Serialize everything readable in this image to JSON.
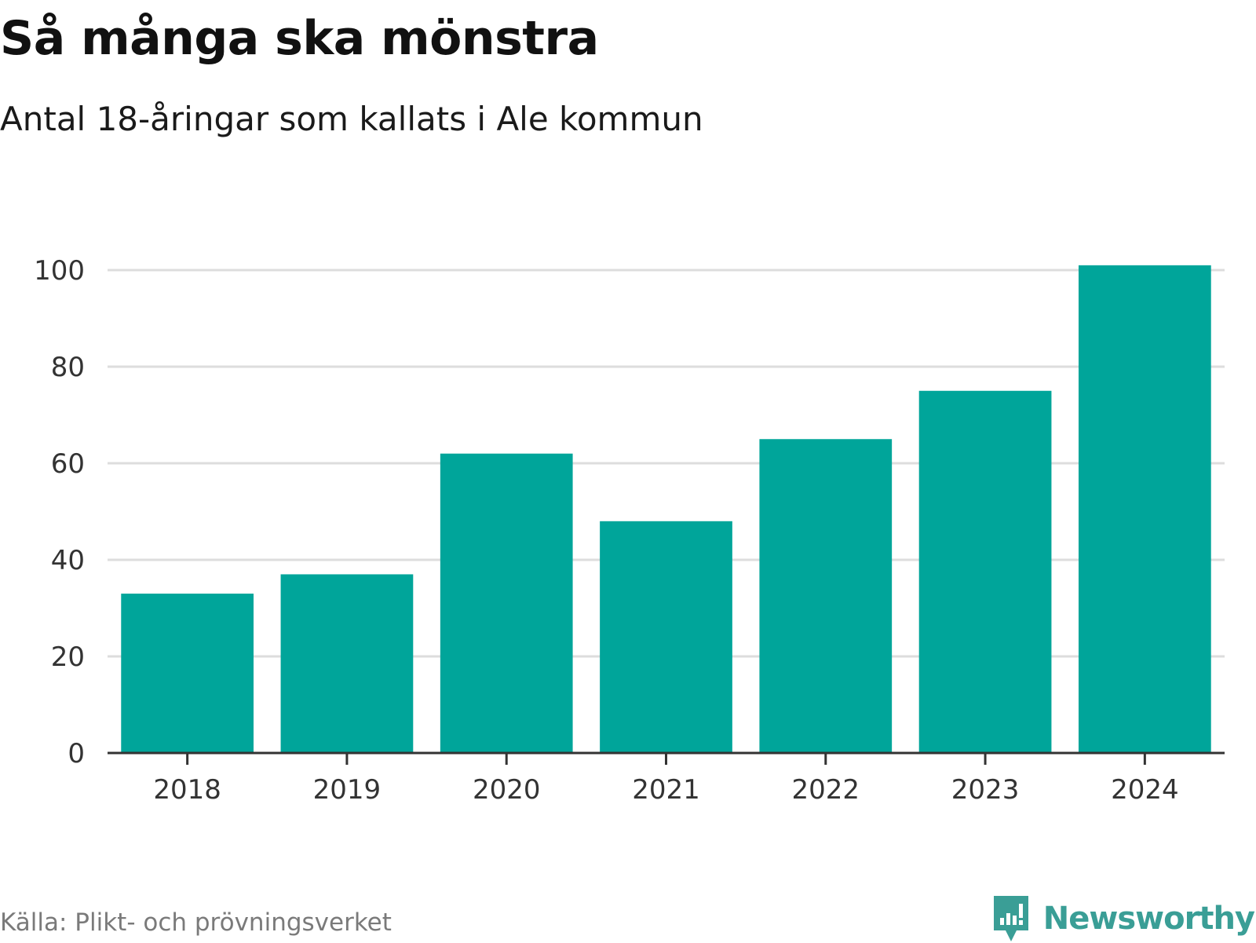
{
  "header": {
    "title": "Så många ska mönstra",
    "subtitle": "Antal 18-åringar som kallats i Ale kommun"
  },
  "footer": {
    "source": "Källa: Plikt- och prövningsverket",
    "brand": "Newsworthy",
    "brand_icon": "chart-bubble-icon",
    "brand_color": "#3a9e96"
  },
  "colors": {
    "bar": "#00a59a",
    "grid": "#dddddd",
    "axis": "#333333"
  },
  "chart_data": {
    "type": "bar",
    "title": "Så många ska mönstra",
    "subtitle": "Antal 18-åringar som kallats i Ale kommun",
    "categories": [
      "2018",
      "2019",
      "2020",
      "2021",
      "2022",
      "2023",
      "2024"
    ],
    "values": [
      33,
      37,
      62,
      48,
      65,
      75,
      101
    ],
    "xlabel": "",
    "ylabel": "",
    "ylim": [
      0,
      100
    ],
    "yticks": [
      0,
      20,
      40,
      60,
      80,
      100
    ],
    "grid": true,
    "legend": "none"
  }
}
